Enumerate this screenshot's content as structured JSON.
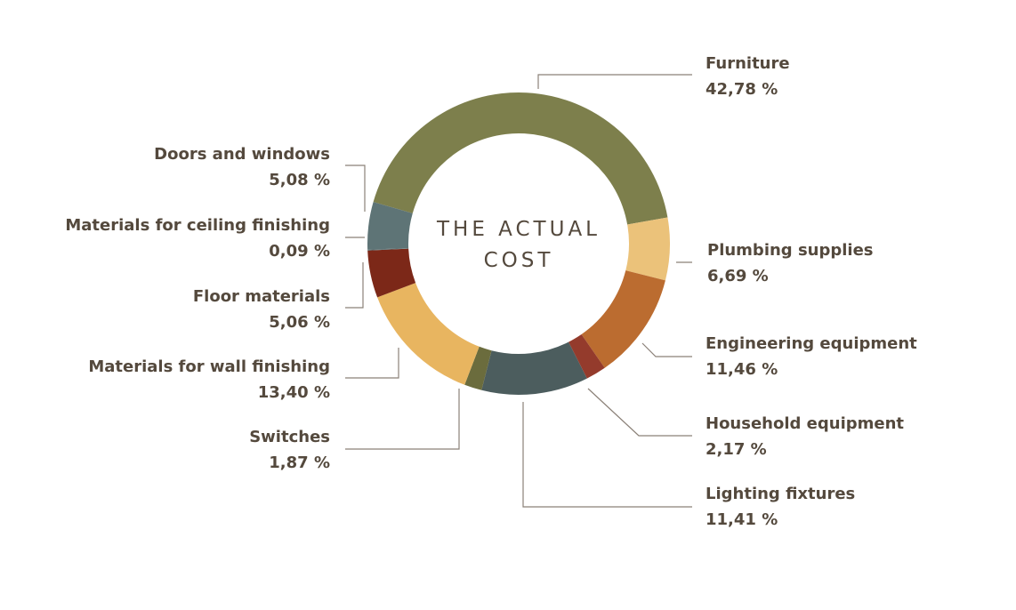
{
  "chart_data": {
    "type": "pie",
    "center_label": [
      "THE ACTUAL",
      "COST"
    ],
    "value_suffix": " %",
    "slices": [
      {
        "name": "Furniture",
        "value": 42.78,
        "label": "42,78",
        "color": "#7d7f4c"
      },
      {
        "name": "Plumbing supplies",
        "value": 6.69,
        "label": "6,69",
        "color": "#ebc27a"
      },
      {
        "name": "Engineering equipment",
        "value": 11.46,
        "label": "11,46",
        "color": "#bb6c30"
      },
      {
        "name": "Household equipment",
        "value": 2.17,
        "label": "2,17",
        "color": "#943b2c"
      },
      {
        "name": "Lighting fixtures",
        "value": 11.41,
        "label": "11,41",
        "color": "#4c5d5e"
      },
      {
        "name": "Switches",
        "value": 1.87,
        "label": "1,87",
        "color": "#6b6c3d"
      },
      {
        "name": "Materials for wall finishing",
        "value": 13.4,
        "label": "13,40",
        "color": "#e8b560"
      },
      {
        "name": "Floor materials",
        "value": 5.06,
        "label": "5,06",
        "color": "#7c2818"
      },
      {
        "name": "Materials for ceiling finishing",
        "value": 0.09,
        "label": "0,09",
        "color": "#5e7476"
      },
      {
        "name": "Doors and windows",
        "value": 5.08,
        "label": "5,08",
        "color": "#5e7476"
      }
    ]
  }
}
